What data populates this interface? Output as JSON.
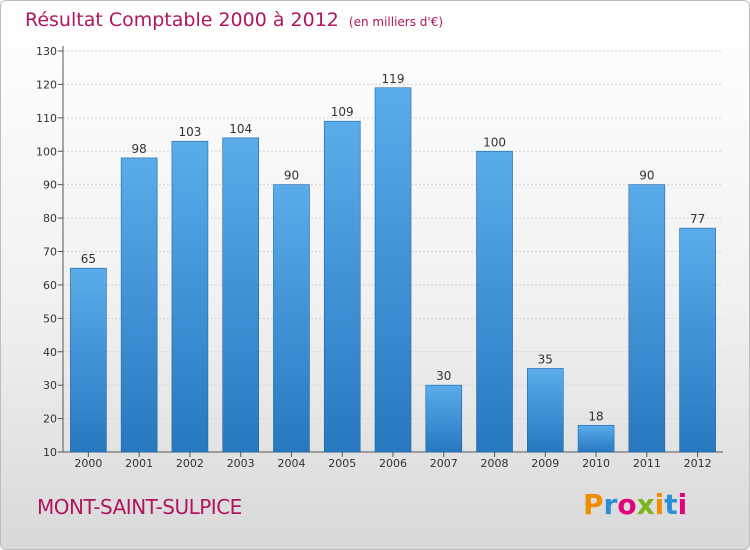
{
  "chart_data": {
    "type": "bar",
    "title": "Résultat Comptable 2000 à 2012",
    "subtitle": "(en milliers d'€)",
    "categories": [
      "2000",
      "2001",
      "2002",
      "2003",
      "2004",
      "2005",
      "2006",
      "2007",
      "2008",
      "2009",
      "2010",
      "2011",
      "2012"
    ],
    "values": [
      65,
      98,
      103,
      104,
      90,
      109,
      119,
      30,
      100,
      35,
      18,
      90,
      77
    ],
    "ylim": [
      10,
      130
    ],
    "yticks": [
      10,
      20,
      30,
      40,
      50,
      60,
      70,
      80,
      90,
      100,
      110,
      120,
      130
    ],
    "xlabel": "",
    "ylabel": "",
    "grid": true
  },
  "footer": {
    "commune": "MONT-SAINT-SULPICE"
  },
  "logo": {
    "letters": [
      "P",
      "r",
      "o",
      "x",
      "i",
      "t",
      "i"
    ],
    "colors": [
      "#f28c00",
      "#2b8fd6",
      "#e2007a",
      "#7ab51d",
      "#f28c00",
      "#2b8fd6",
      "#e2007a"
    ]
  },
  "colors": {
    "bar_top": "#5aacea",
    "bar_bottom": "#2878c0",
    "title": "#b0165f"
  }
}
